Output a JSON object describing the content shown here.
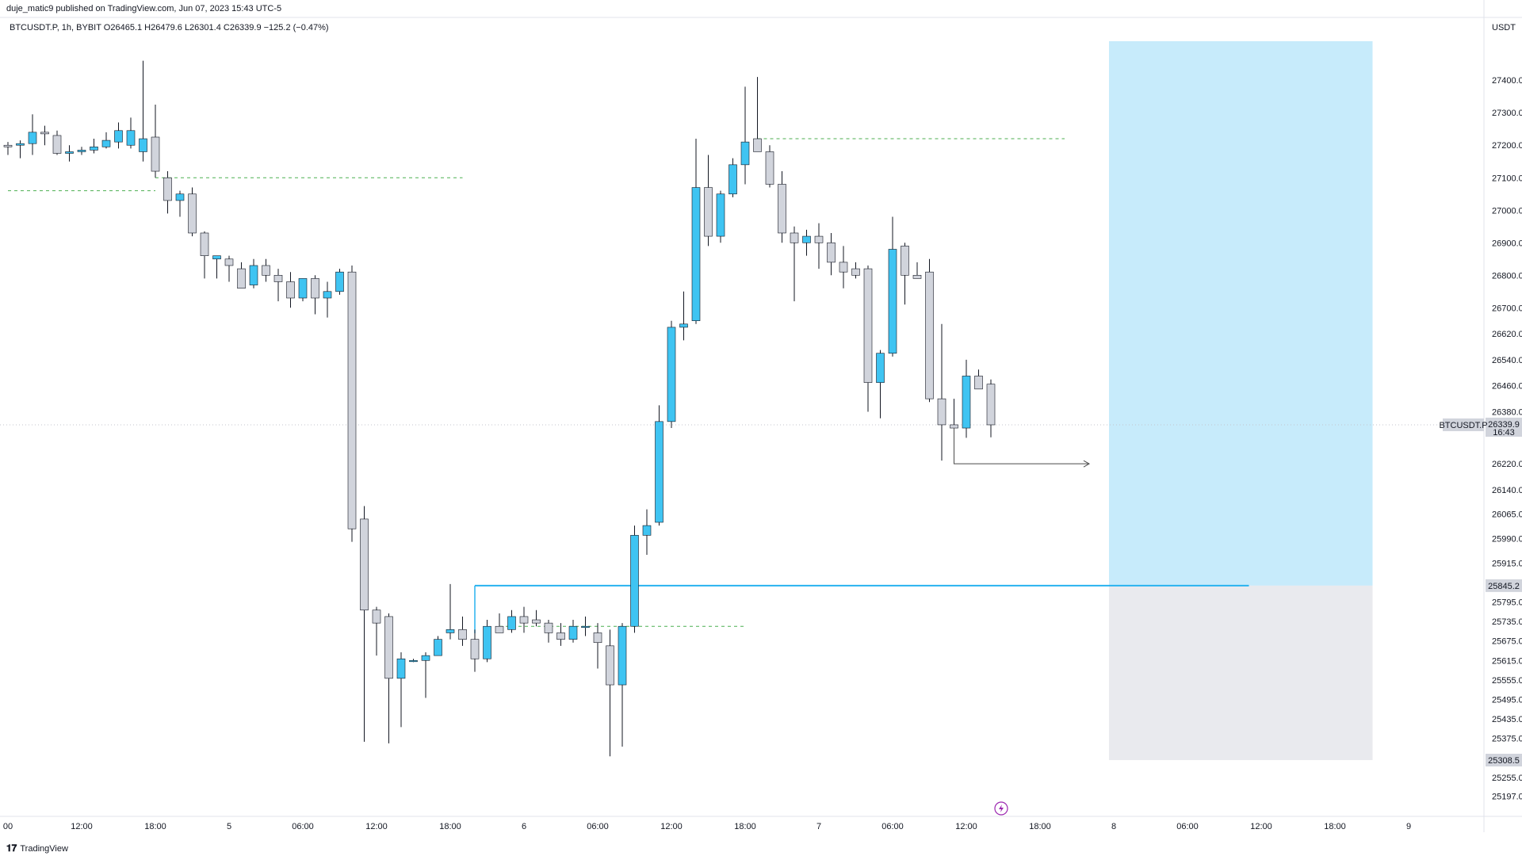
{
  "header": {
    "published": "duje_matic9 published on TradingView.com, Jun 07, 2023 15:43 UTC-5",
    "ohlc": "BTCUSDT.P, 1h, BYBIT  O26465.1  H26479.6  L26301.4  C26339.9  −125.2 (−0.47%)",
    "currency": "USDT"
  },
  "footer": {
    "brand": "TradingView",
    "brand_icon": "tradingview-logo-icon"
  },
  "colors": {
    "bull": "#3fc4f2",
    "bear": "#d1d4dc",
    "bull_alt": "#2962ff",
    "wick": "#131722",
    "zone_top": "#c7ebfb",
    "zone_bottom": "#e9eaee",
    "level_line": "#28b3ef",
    "dashed": "#4caf50",
    "arrow": "#4a4a4a",
    "price_tag_bg": "#d1d4dc"
  },
  "chart_data": {
    "type": "candlestick",
    "symbol": "BTCUSDT.P",
    "interval": "1h",
    "exchange": "BYBIT",
    "ylim": [
      25150,
      27520
    ],
    "y_ticks": [
      "27400.0",
      "27300.0",
      "27200.0",
      "27100.0",
      "27000.0",
      "26900.0",
      "26800.0",
      "26700.0",
      "26620.0",
      "26540.0",
      "26460.0",
      "26380.0",
      "26220.0",
      "26140.0",
      "26065.0",
      "25990.0",
      "25915.0",
      "25795.0",
      "25735.0",
      "25675.0",
      "25615.0",
      "25555.0",
      "25495.0",
      "25435.0",
      "25375.0",
      "25255.0",
      "25197.0"
    ],
    "x_ticks": [
      {
        "label": "00",
        "bar": 0
      },
      {
        "label": "12:00",
        "bar": 6
      },
      {
        "label": "18:00",
        "bar": 12
      },
      {
        "label": "5",
        "bar": 18
      },
      {
        "label": "06:00",
        "bar": 24
      },
      {
        "label": "12:00",
        "bar": 30
      },
      {
        "label": "18:00",
        "bar": 36
      },
      {
        "label": "6",
        "bar": 42
      },
      {
        "label": "06:00",
        "bar": 48
      },
      {
        "label": "12:00",
        "bar": 54
      },
      {
        "label": "18:00",
        "bar": 60
      },
      {
        "label": "7",
        "bar": 66
      },
      {
        "label": "06:00",
        "bar": 72
      },
      {
        "label": "12:00",
        "bar": 78
      },
      {
        "label": "18:00",
        "bar": 84
      },
      {
        "label": "8",
        "bar": 90
      },
      {
        "label": "06:00",
        "bar": 96
      },
      {
        "label": "12:00",
        "bar": 102
      },
      {
        "label": "18:00",
        "bar": 108
      },
      {
        "label": "9",
        "bar": 114
      }
    ],
    "candles": [
      {
        "o": 27200,
        "h": 27210,
        "l": 27170,
        "c": 27195
      },
      {
        "o": 27200,
        "h": 27215,
        "l": 27160,
        "c": 27205
      },
      {
        "o": 27205,
        "h": 27295,
        "l": 27170,
        "c": 27240
      },
      {
        "o": 27240,
        "h": 27260,
        "l": 27200,
        "c": 27235
      },
      {
        "o": 27230,
        "h": 27245,
        "l": 27170,
        "c": 27175
      },
      {
        "o": 27175,
        "h": 27200,
        "l": 27150,
        "c": 27180
      },
      {
        "o": 27180,
        "h": 27195,
        "l": 27170,
        "c": 27185
      },
      {
        "o": 27185,
        "h": 27220,
        "l": 27175,
        "c": 27195
      },
      {
        "o": 27195,
        "h": 27240,
        "l": 27190,
        "c": 27215
      },
      {
        "o": 27210,
        "h": 27270,
        "l": 27190,
        "c": 27245
      },
      {
        "o": 27200,
        "h": 27285,
        "l": 27190,
        "c": 27245
      },
      {
        "o": 27180,
        "h": 27460,
        "l": 27150,
        "c": 27220
      },
      {
        "o": 27225,
        "h": 27325,
        "l": 27100,
        "c": 27120
      },
      {
        "o": 27100,
        "h": 27120,
        "l": 26990,
        "c": 27030
      },
      {
        "o": 27030,
        "h": 27060,
        "l": 26980,
        "c": 27050
      },
      {
        "o": 27050,
        "h": 27070,
        "l": 26920,
        "c": 26930
      },
      {
        "o": 26930,
        "h": 26935,
        "l": 26790,
        "c": 26860
      },
      {
        "o": 26850,
        "h": 26860,
        "l": 26790,
        "c": 26860
      },
      {
        "o": 26850,
        "h": 26860,
        "l": 26780,
        "c": 26830
      },
      {
        "o": 26820,
        "h": 26840,
        "l": 26765,
        "c": 26760
      },
      {
        "o": 26770,
        "h": 26850,
        "l": 26760,
        "c": 26830
      },
      {
        "o": 26830,
        "h": 26850,
        "l": 26780,
        "c": 26800
      },
      {
        "o": 26800,
        "h": 26820,
        "l": 26720,
        "c": 26780
      },
      {
        "o": 26780,
        "h": 26810,
        "l": 26700,
        "c": 26730
      },
      {
        "o": 26730,
        "h": 26790,
        "l": 26720,
        "c": 26790
      },
      {
        "o": 26790,
        "h": 26800,
        "l": 26680,
        "c": 26730
      },
      {
        "o": 26730,
        "h": 26780,
        "l": 26670,
        "c": 26750
      },
      {
        "o": 26750,
        "h": 26820,
        "l": 26740,
        "c": 26810
      },
      {
        "o": 26810,
        "h": 26830,
        "l": 25980,
        "c": 26020
      },
      {
        "o": 26050,
        "h": 26090,
        "l": 25365,
        "c": 25770
      },
      {
        "o": 25770,
        "h": 25780,
        "l": 25630,
        "c": 25730
      },
      {
        "o": 25750,
        "h": 25760,
        "l": 25360,
        "c": 25560
      },
      {
        "o": 25560,
        "h": 25640,
        "l": 25410,
        "c": 25620
      },
      {
        "o": 25615,
        "h": 25620,
        "l": 25610,
        "c": 25615
      },
      {
        "o": 25615,
        "h": 25640,
        "l": 25500,
        "c": 25630
      },
      {
        "o": 25630,
        "h": 25690,
        "l": 25630,
        "c": 25680
      },
      {
        "o": 25700,
        "h": 25850,
        "l": 25680,
        "c": 25710
      },
      {
        "o": 25710,
        "h": 25750,
        "l": 25660,
        "c": 25680
      },
      {
        "o": 25680,
        "h": 25710,
        "l": 25580,
        "c": 25620
      },
      {
        "o": 25620,
        "h": 25740,
        "l": 25610,
        "c": 25720
      },
      {
        "o": 25720,
        "h": 25760,
        "l": 25700,
        "c": 25700
      },
      {
        "o": 25710,
        "h": 25770,
        "l": 25700,
        "c": 25750
      },
      {
        "o": 25750,
        "h": 25780,
        "l": 25700,
        "c": 25730
      },
      {
        "o": 25740,
        "h": 25770,
        "l": 25720,
        "c": 25730
      },
      {
        "o": 25730,
        "h": 25740,
        "l": 25670,
        "c": 25700
      },
      {
        "o": 25700,
        "h": 25730,
        "l": 25660,
        "c": 25680
      },
      {
        "o": 25680,
        "h": 25740,
        "l": 25670,
        "c": 25720
      },
      {
        "o": 25720,
        "h": 25750,
        "l": 25690,
        "c": 25720
      },
      {
        "o": 25700,
        "h": 25730,
        "l": 25590,
        "c": 25670
      },
      {
        "o": 25660,
        "h": 25710,
        "l": 25320,
        "c": 25540
      },
      {
        "o": 25540,
        "h": 25730,
        "l": 25350,
        "c": 25720
      },
      {
        "o": 25720,
        "h": 26030,
        "l": 25700,
        "c": 26000
      },
      {
        "o": 26000,
        "h": 26080,
        "l": 25940,
        "c": 26030
      },
      {
        "o": 26040,
        "h": 26400,
        "l": 26030,
        "c": 26350
      },
      {
        "o": 26350,
        "h": 26660,
        "l": 26330,
        "c": 26640
      },
      {
        "o": 26640,
        "h": 26750,
        "l": 26600,
        "c": 26650
      },
      {
        "o": 26660,
        "h": 27220,
        "l": 26650,
        "c": 27070
      },
      {
        "o": 27070,
        "h": 27170,
        "l": 26890,
        "c": 26920
      },
      {
        "o": 26920,
        "h": 27060,
        "l": 26900,
        "c": 27050
      },
      {
        "o": 27050,
        "h": 27160,
        "l": 27040,
        "c": 27140
      },
      {
        "o": 27140,
        "h": 27380,
        "l": 27080,
        "c": 27210
      },
      {
        "o": 27220,
        "h": 27410,
        "l": 27190,
        "c": 27180
      },
      {
        "o": 27180,
        "h": 27200,
        "l": 27070,
        "c": 27080
      },
      {
        "o": 27080,
        "h": 27120,
        "l": 26900,
        "c": 26930
      },
      {
        "o": 26930,
        "h": 26950,
        "l": 26720,
        "c": 26900
      },
      {
        "o": 26900,
        "h": 26940,
        "l": 26860,
        "c": 26920
      },
      {
        "o": 26920,
        "h": 26960,
        "l": 26820,
        "c": 26900
      },
      {
        "o": 26900,
        "h": 26930,
        "l": 26800,
        "c": 26840
      },
      {
        "o": 26840,
        "h": 26890,
        "l": 26760,
        "c": 26810
      },
      {
        "o": 26820,
        "h": 26840,
        "l": 26790,
        "c": 26800
      },
      {
        "o": 26820,
        "h": 26830,
        "l": 26380,
        "c": 26470
      },
      {
        "o": 26470,
        "h": 26570,
        "l": 26360,
        "c": 26560
      },
      {
        "o": 26560,
        "h": 26980,
        "l": 26550,
        "c": 26880
      },
      {
        "o": 26890,
        "h": 26900,
        "l": 26710,
        "c": 26800
      },
      {
        "o": 26800,
        "h": 26840,
        "l": 26790,
        "c": 26790
      },
      {
        "o": 26810,
        "h": 26850,
        "l": 26410,
        "c": 26420
      },
      {
        "o": 26420,
        "h": 26650,
        "l": 26230,
        "c": 26340
      },
      {
        "o": 26340,
        "h": 26420,
        "l": 26320,
        "c": 26330
      },
      {
        "o": 26330,
        "h": 26540,
        "l": 26300,
        "c": 26490
      },
      {
        "o": 26490,
        "h": 26510,
        "l": 26450,
        "c": 26450
      },
      {
        "o": 26465,
        "h": 26479.6,
        "l": 26301.4,
        "c": 26339.9
      }
    ],
    "last_price": {
      "symbol": "BTCUSDT.P",
      "value": "26339.9",
      "countdown": "16:43"
    },
    "horizontal_levels": [
      {
        "kind": "solid",
        "price": 25845.2,
        "from_bar": 38,
        "to_bar": 101,
        "label": "25845.2"
      }
    ],
    "dashed_levels": [
      {
        "price": 27060,
        "from_bar": 0,
        "to_bar": 12
      },
      {
        "price": 27100,
        "from_bar": 12,
        "to_bar": 37
      },
      {
        "price": 27220,
        "from_bar": 61,
        "to_bar": 86
      },
      {
        "price": 25720,
        "from_bar": 40,
        "to_bar": 60
      }
    ],
    "position_zone": {
      "from_bar": 90,
      "to_bar": 111,
      "target_price": 27520,
      "entry_price": 25845.2,
      "stop_price": 25308.5,
      "stop_label": "25308.5"
    },
    "arrow": {
      "from_bar": 77,
      "price_start": 26330,
      "price_end": 26220,
      "to_bar": 88
    }
  }
}
